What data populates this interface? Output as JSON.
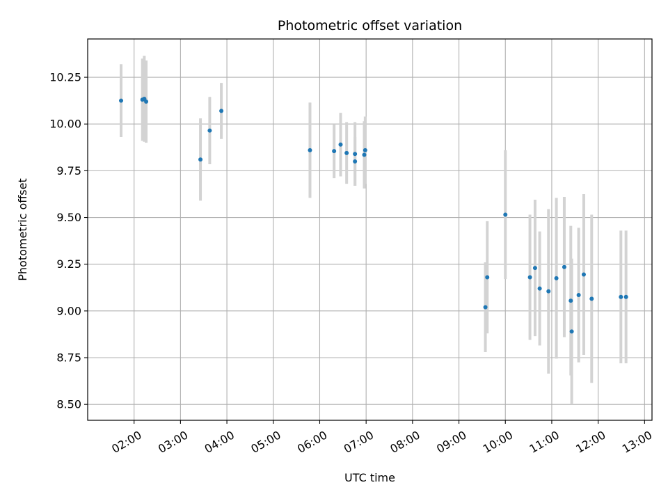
{
  "chart_data": {
    "type": "scatter",
    "title": "Photometric offset variation",
    "xlabel": "UTC time",
    "ylabel": "Photometric offset",
    "grid": true,
    "x_unit": "hours (UTC)",
    "xlim": [
      1.0,
      13.16
    ],
    "ylim": [
      8.415,
      10.455
    ],
    "x_ticks": [
      {
        "value": 2,
        "label": "02:00"
      },
      {
        "value": 3,
        "label": "03:00"
      },
      {
        "value": 4,
        "label": "04:00"
      },
      {
        "value": 5,
        "label": "05:00"
      },
      {
        "value": 6,
        "label": "06:00"
      },
      {
        "value": 7,
        "label": "07:00"
      },
      {
        "value": 8,
        "label": "08:00"
      },
      {
        "value": 9,
        "label": "09:00"
      },
      {
        "value": 10,
        "label": "10:00"
      },
      {
        "value": 11,
        "label": "11:00"
      },
      {
        "value": 12,
        "label": "12:00"
      },
      {
        "value": 13,
        "label": "13:00"
      }
    ],
    "y_ticks": [
      {
        "value": 8.5,
        "label": "8.50"
      },
      {
        "value": 8.75,
        "label": "8.75"
      },
      {
        "value": 9.0,
        "label": "9.00"
      },
      {
        "value": 9.25,
        "label": "9.25"
      },
      {
        "value": 9.5,
        "label": "9.50"
      },
      {
        "value": 9.75,
        "label": "9.75"
      },
      {
        "value": 10.0,
        "label": "10.00"
      },
      {
        "value": 10.25,
        "label": "10.25"
      }
    ],
    "colors": {
      "point": "#1f77b4",
      "errorbar": "#d3d3d3",
      "grid": "#b0b0b0"
    },
    "points": [
      {
        "x": 1.72,
        "y": 10.125,
        "err": 0.195
      },
      {
        "x": 2.18,
        "y": 10.13,
        "err": 0.22
      },
      {
        "x": 2.22,
        "y": 10.135,
        "err": 0.23
      },
      {
        "x": 2.26,
        "y": 10.12,
        "err": 0.22
      },
      {
        "x": 3.43,
        "y": 9.81,
        "err": 0.22
      },
      {
        "x": 3.63,
        "y": 9.965,
        "err": 0.18
      },
      {
        "x": 3.88,
        "y": 10.07,
        "err": 0.15
      },
      {
        "x": 5.79,
        "y": 9.86,
        "err": 0.255
      },
      {
        "x": 6.31,
        "y": 9.855,
        "err": 0.145
      },
      {
        "x": 6.45,
        "y": 9.89,
        "err": 0.17
      },
      {
        "x": 6.58,
        "y": 9.845,
        "err": 0.165
      },
      {
        "x": 6.76,
        "y": 9.8,
        "err": 0.13
      },
      {
        "x": 6.76,
        "y": 9.84,
        "err": 0.17
      },
      {
        "x": 6.96,
        "y": 9.835,
        "err": 0.18
      },
      {
        "x": 6.98,
        "y": 9.86,
        "err": 0.18
      },
      {
        "x": 9.57,
        "y": 9.02,
        "err": 0.24
      },
      {
        "x": 9.61,
        "y": 9.18,
        "err": 0.3
      },
      {
        "x": 10.0,
        "y": 9.515,
        "err": 0.345
      },
      {
        "x": 10.53,
        "y": 9.18,
        "err": 0.335
      },
      {
        "x": 10.64,
        "y": 9.23,
        "err": 0.365
      },
      {
        "x": 10.74,
        "y": 9.12,
        "err": 0.305
      },
      {
        "x": 10.93,
        "y": 9.105,
        "err": 0.44
      },
      {
        "x": 11.1,
        "y": 9.175,
        "err": 0.43
      },
      {
        "x": 11.27,
        "y": 9.235,
        "err": 0.375
      },
      {
        "x": 11.41,
        "y": 9.055,
        "err": 0.4
      },
      {
        "x": 11.43,
        "y": 8.89,
        "err": 0.39
      },
      {
        "x": 11.58,
        "y": 9.085,
        "err": 0.36
      },
      {
        "x": 11.69,
        "y": 9.195,
        "err": 0.43
      },
      {
        "x": 11.86,
        "y": 9.065,
        "err": 0.45
      },
      {
        "x": 12.49,
        "y": 9.075,
        "err": 0.355
      },
      {
        "x": 12.6,
        "y": 9.075,
        "err": 0.355
      }
    ]
  }
}
